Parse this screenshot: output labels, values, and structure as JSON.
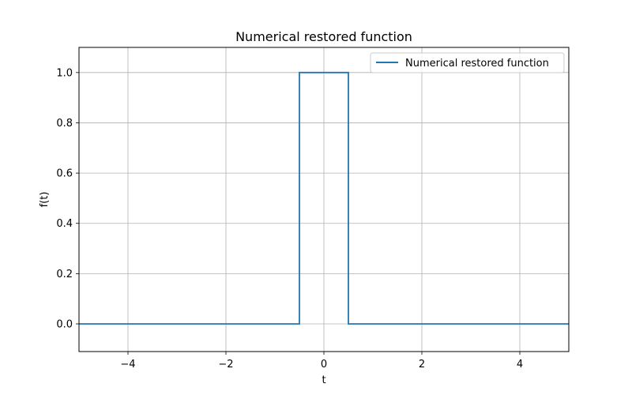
{
  "chart_data": {
    "type": "line",
    "title": "Numerical restored function",
    "xlabel": "t",
    "ylabel": "f(t)",
    "xlim": [
      -5,
      5
    ],
    "ylim": [
      -0.11,
      1.1
    ],
    "x_ticks": [
      -4,
      -2,
      0,
      2,
      4
    ],
    "x_tick_labels": [
      "−4",
      "−2",
      "0",
      "2",
      "4"
    ],
    "y_ticks": [
      0.0,
      0.2,
      0.4,
      0.6,
      0.8,
      1.0
    ],
    "y_tick_labels": [
      "0.0",
      "0.2",
      "0.4",
      "0.6",
      "0.8",
      "1.0"
    ],
    "grid": true,
    "legend_position": "top-right",
    "series": [
      {
        "name": "Numerical restored function",
        "color": "#1f77b4",
        "x": [
          -5,
          -0.5,
          -0.5,
          0.5,
          0.5,
          5
        ],
        "y": [
          0,
          0,
          1,
          1,
          0,
          0
        ]
      }
    ]
  }
}
